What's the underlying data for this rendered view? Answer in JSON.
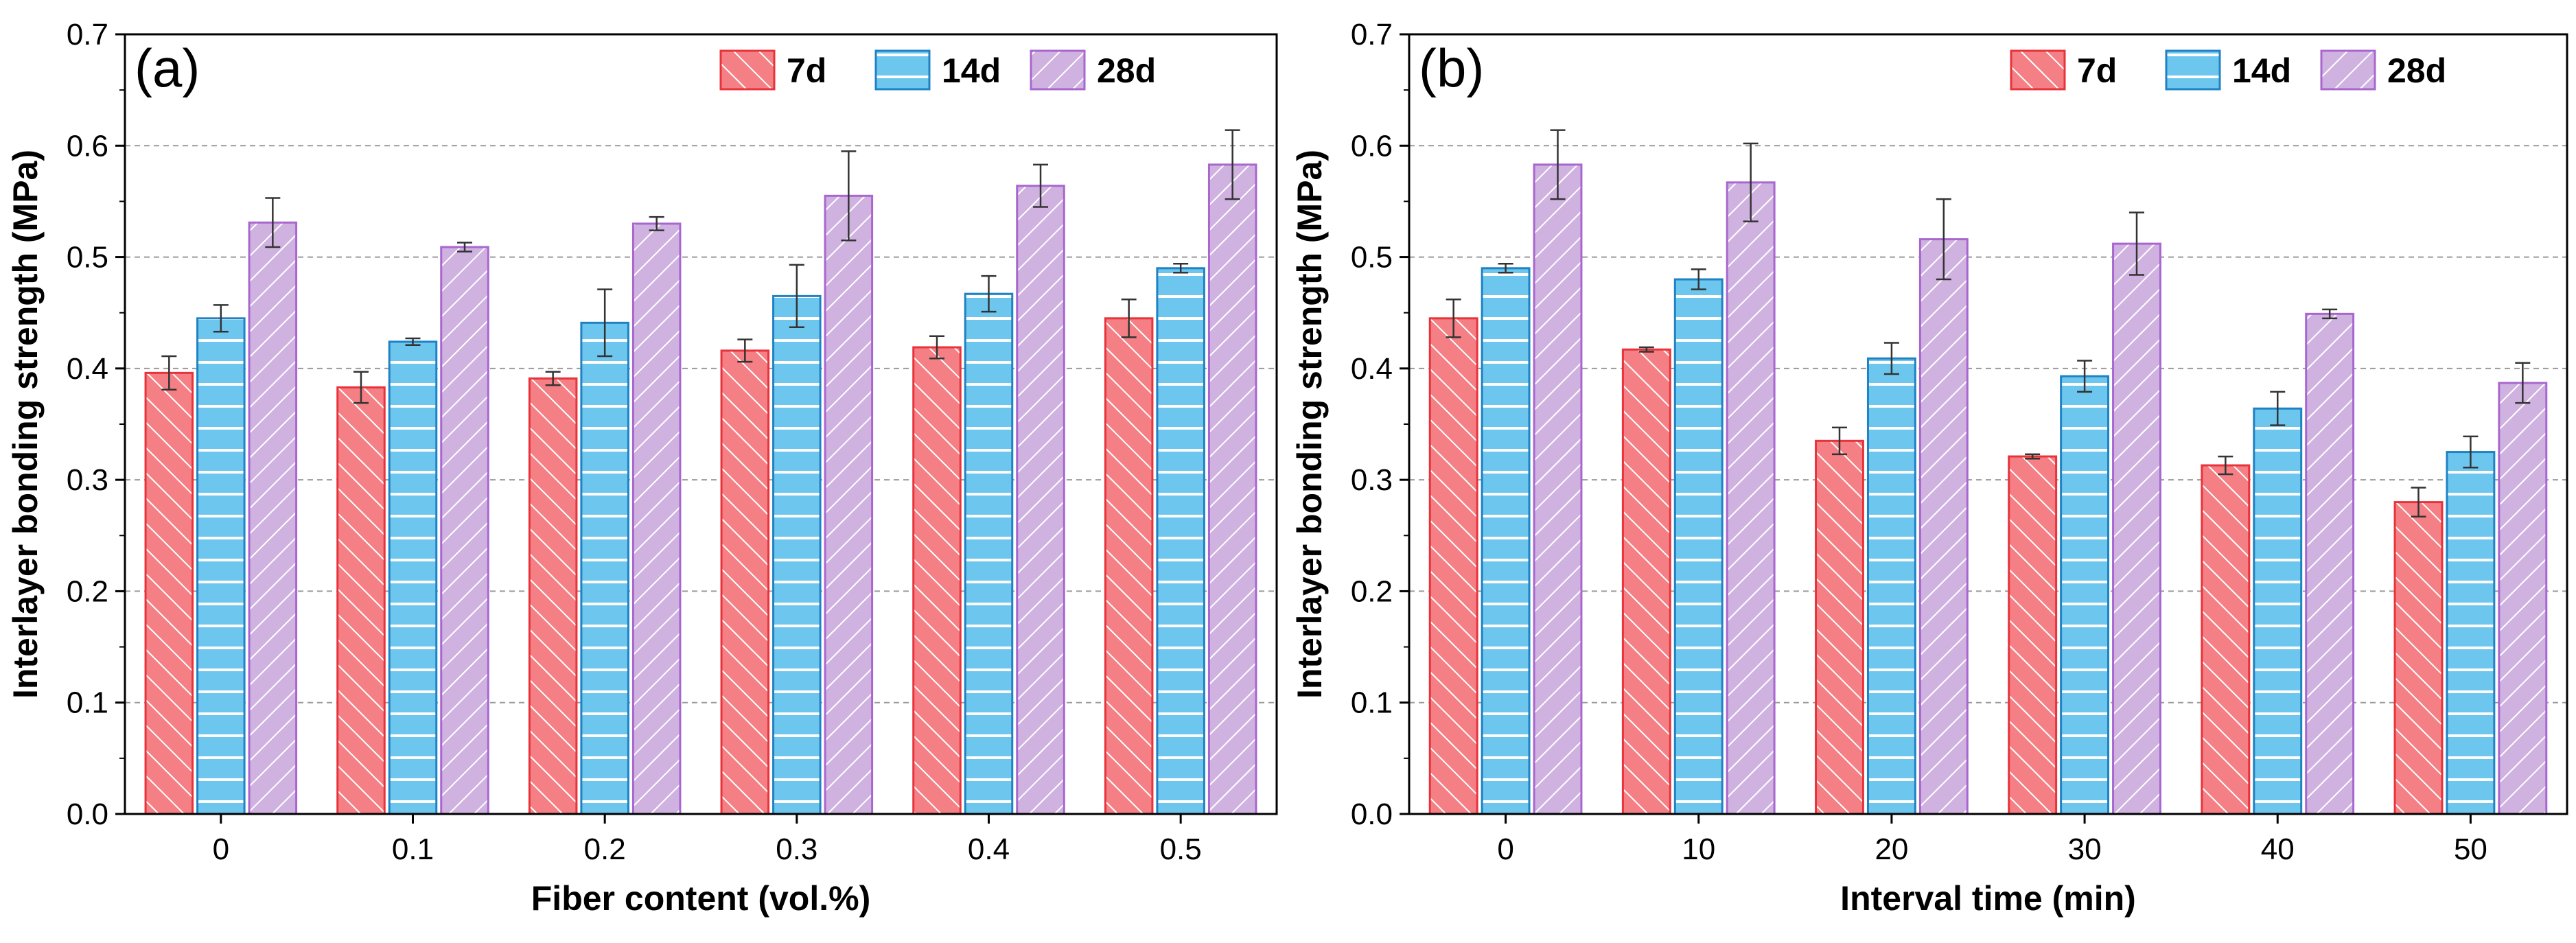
{
  "colors": {
    "s7d_fill": "#f47f85",
    "s7d_edge": "#e8333b",
    "s14d_fill": "#6cc6ee",
    "s14d_edge": "#1f82c4",
    "s28d_fill": "#cfb2e0",
    "s28d_edge": "#a867cf",
    "grid": "#9a9a9a"
  },
  "chart_data": [
    {
      "type": "bar",
      "panel_label": "(a)",
      "xlabel": "Fiber content (vol.%)",
      "ylabel": "Interlayer bonding strength (MPa)",
      "ylim": [
        0,
        0.7
      ],
      "yticks": [
        "0.0",
        "0.1",
        "0.2",
        "0.3",
        "0.4",
        "0.5",
        "0.6",
        "0.7"
      ],
      "grid": true,
      "legend": "top-right",
      "categories": [
        "0",
        "0.1",
        "0.2",
        "0.3",
        "0.4",
        "0.5"
      ],
      "series": [
        {
          "name": "7d",
          "values": [
            0.396,
            0.383,
            0.391,
            0.416,
            0.419,
            0.445
          ],
          "errors": [
            0.015,
            0.014,
            0.006,
            0.01,
            0.01,
            0.017
          ]
        },
        {
          "name": "14d",
          "values": [
            0.445,
            0.424,
            0.441,
            0.465,
            0.467,
            0.49
          ],
          "errors": [
            0.012,
            0.003,
            0.03,
            0.028,
            0.016,
            0.004
          ]
        },
        {
          "name": "28d",
          "values": [
            0.531,
            0.509,
            0.53,
            0.555,
            0.564,
            0.583
          ],
          "errors": [
            0.022,
            0.004,
            0.006,
            0.04,
            0.019,
            0.031
          ]
        }
      ]
    },
    {
      "type": "bar",
      "panel_label": "(b)",
      "xlabel": "Interval time (min)",
      "ylabel": "Interlayer bonding strength (MPa)",
      "ylim": [
        0,
        0.7
      ],
      "yticks": [
        "0.0",
        "0.1",
        "0.2",
        "0.3",
        "0.4",
        "0.5",
        "0.6",
        "0.7"
      ],
      "grid": true,
      "legend": "top-right",
      "categories": [
        "0",
        "10",
        "20",
        "30",
        "40",
        "50"
      ],
      "series": [
        {
          "name": "7d",
          "values": [
            0.445,
            0.417,
            0.335,
            0.321,
            0.313,
            0.28
          ],
          "errors": [
            0.017,
            0.002,
            0.012,
            0.002,
            0.008,
            0.013
          ]
        },
        {
          "name": "14d",
          "values": [
            0.49,
            0.48,
            0.409,
            0.393,
            0.364,
            0.325
          ],
          "errors": [
            0.004,
            0.009,
            0.014,
            0.014,
            0.015,
            0.014
          ]
        },
        {
          "name": "28d",
          "values": [
            0.583,
            0.567,
            0.516,
            0.512,
            0.449,
            0.387
          ],
          "errors": [
            0.031,
            0.035,
            0.036,
            0.028,
            0.004,
            0.018
          ]
        }
      ]
    }
  ]
}
